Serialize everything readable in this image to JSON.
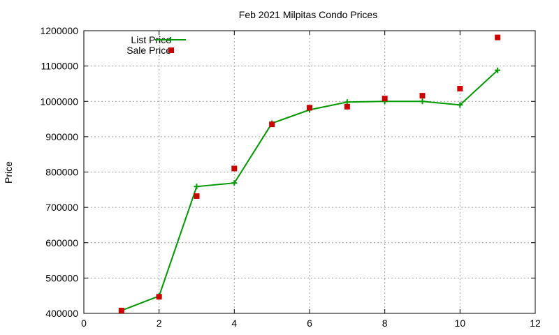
{
  "chart_data": {
    "type": "line",
    "title": "Feb 2021 Milpitas Condo Prices",
    "xlabel": "",
    "ylabel": "Price",
    "xlim": [
      0,
      12
    ],
    "ylim": [
      400000,
      1200000
    ],
    "x_ticks": [
      0,
      2,
      4,
      6,
      8,
      10,
      12
    ],
    "y_ticks": [
      400000,
      500000,
      600000,
      700000,
      800000,
      900000,
      1000000,
      1100000,
      1200000
    ],
    "x_tick_labels": [
      "0",
      "2",
      "4",
      "6",
      "8",
      "10",
      "12"
    ],
    "y_tick_labels": [
      "400000",
      "500000",
      "600000",
      "700000",
      "800000",
      "900000",
      "1000000",
      "1100000",
      "1200000"
    ],
    "grid": true,
    "legend_position": "top-left",
    "series": [
      {
        "name": "List Price",
        "style": "line-with-plus-markers",
        "color": "#009900",
        "x": [
          1,
          2,
          3,
          4,
          5,
          6,
          7,
          8,
          9,
          10,
          11
        ],
        "y": [
          408000,
          449000,
          759000,
          769000,
          938000,
          976000,
          998000,
          1000000,
          1000000,
          990000,
          1088000
        ]
      },
      {
        "name": "Sale Price",
        "style": "square-markers",
        "color": "#cc0000",
        "x": [
          1,
          2,
          3,
          4,
          5,
          6,
          7,
          8,
          9,
          10,
          11
        ],
        "y": [
          408000,
          447000,
          732000,
          810000,
          935000,
          982000,
          985000,
          1008000,
          1016000,
          1036000,
          1181000
        ]
      }
    ]
  }
}
